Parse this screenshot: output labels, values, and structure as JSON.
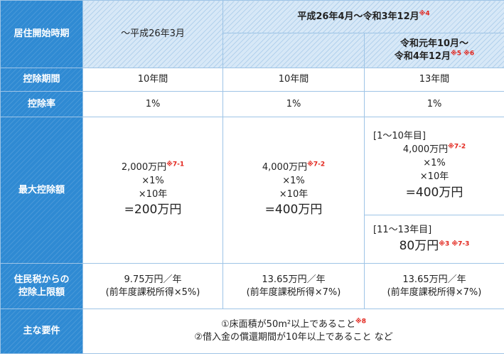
{
  "header": {
    "start_label": "居住開始時期",
    "col1": "〜平成26年3月",
    "col23": "平成26年4月〜令和3年12月",
    "col23_note": "※4",
    "col3_line1": "令和元年10月〜",
    "col3_line2": "令和4年12月",
    "col3_note": "※5 ※6"
  },
  "rows": {
    "period": {
      "label": "控除期間",
      "c1": "10年間",
      "c2": "10年間",
      "c3": "13年間"
    },
    "rate": {
      "label": "控除率",
      "c1": "1%",
      "c2": "1%",
      "c3": "1%"
    },
    "max": {
      "label": "最大控除額",
      "c1": {
        "amount": "2,000万円",
        "note": "※7-1",
        "l2": "×1%",
        "l3": "×10年",
        "result": "=200万円"
      },
      "c2": {
        "amount": "4,000万円",
        "note": "※7-2",
        "l2": "×1%",
        "l3": "×10年",
        "result": "=400万円"
      },
      "c3a": {
        "range": "[1〜10年目]",
        "amount": "4,000万円",
        "note": "※7-2",
        "l2": "×1%",
        "l3": "×10年",
        "result": "=400万円"
      },
      "c3b": {
        "range": "[11〜13年目]",
        "result": "80万円",
        "note": "※3 ※7-3"
      }
    },
    "resident": {
      "label_l1": "住民税からの",
      "label_l2": "控除上限額",
      "c1_l1": "9.75万円／年",
      "c1_l2": "(前年度課税所得×5%)",
      "c2_l1": "13.65万円／年",
      "c2_l2": "(前年度課税所得×7%)",
      "c3_l1": "13.65万円／年",
      "c3_l2": "(前年度課税所得×7%)"
    },
    "requirements": {
      "label": "主な要件",
      "l1": "①床面積が50m²以上であること",
      "l1_note": "※8",
      "l2": "②借入金の償還期間が10年以上であること など"
    }
  },
  "colors": {
    "side": "#2f8ad3",
    "header": "#d7e8f7",
    "note": "#e2231a",
    "border": "#9ec4e6"
  }
}
